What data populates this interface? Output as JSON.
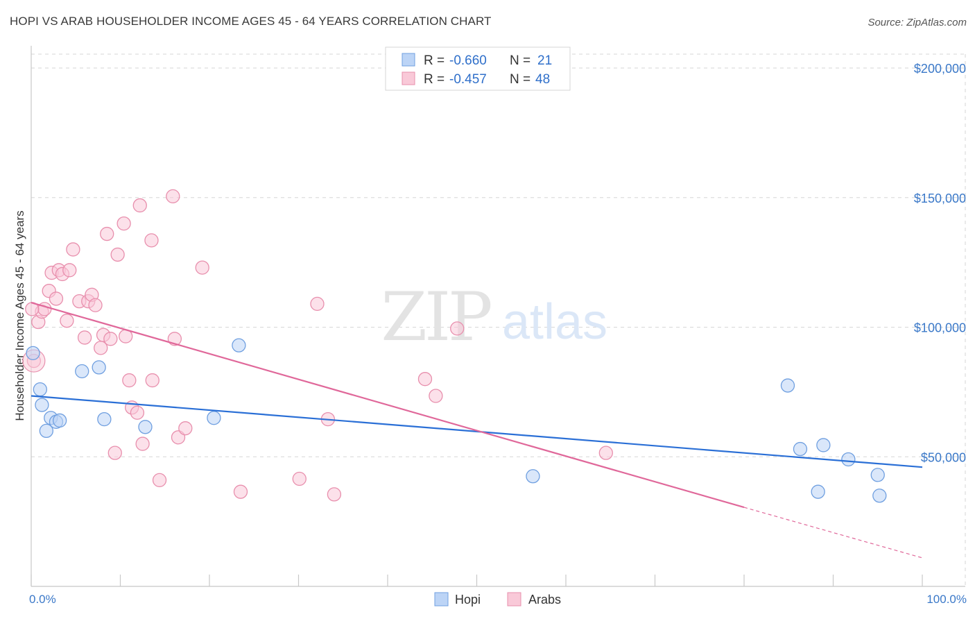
{
  "title": "HOPI VS ARAB HOUSEHOLDER INCOME AGES 45 - 64 YEARS CORRELATION CHART",
  "source": "Source: ZipAtlas.com",
  "watermark": {
    "zip": "ZIP",
    "atlas": "atlas"
  },
  "colors": {
    "hopi_fill": "#bcd4f6",
    "hopi_stroke": "#6f9fe0",
    "hopi_line": "#2a6fd6",
    "arab_fill": "#f9c9d8",
    "arab_stroke": "#e88fad",
    "arab_line": "#e0689a",
    "grid": "#d6d6d6",
    "axis_text": "#3a78c8"
  },
  "legend": {
    "rows": [
      {
        "r_label": "R =",
        "r_value": "-0.660",
        "n_label": "N =",
        "n_value": "21"
      },
      {
        "r_label": "R =",
        "r_value": "-0.457",
        "n_label": "N =",
        "n_value": "48"
      }
    ]
  },
  "bottom_legend": {
    "hopi": "Hopi",
    "arabs": "Arabs"
  },
  "chart_data": {
    "type": "scatter",
    "xlabel": "",
    "ylabel": "Householder Income Ages 45 - 64 years",
    "xlim": [
      0,
      100
    ],
    "ylim": [
      0,
      210000
    ],
    "x_tick_labels": {
      "left": "0.0%",
      "right": "100.0%"
    },
    "y_ticks": [
      {
        "value": 50000,
        "label": "$50,000"
      },
      {
        "value": 100000,
        "label": "$100,000"
      },
      {
        "value": 150000,
        "label": "$150,000"
      },
      {
        "value": 200000,
        "label": "$200,000"
      }
    ],
    "series": [
      {
        "name": "Hopi",
        "r": -0.66,
        "n": 21,
        "points": [
          [
            0.2,
            90000
          ],
          [
            1.0,
            76000
          ],
          [
            1.2,
            70000
          ],
          [
            1.7,
            60000
          ],
          [
            2.2,
            65000
          ],
          [
            2.8,
            63500
          ],
          [
            3.2,
            64000
          ],
          [
            5.7,
            83000
          ],
          [
            7.6,
            84500
          ],
          [
            8.2,
            64500
          ],
          [
            12.8,
            61500
          ],
          [
            20.5,
            65000
          ],
          [
            23.3,
            93000
          ],
          [
            56.3,
            42500
          ],
          [
            84.9,
            77500
          ],
          [
            86.3,
            53000
          ],
          [
            88.3,
            36500
          ],
          [
            88.9,
            54500
          ],
          [
            91.7,
            49000
          ],
          [
            95.0,
            43000
          ],
          [
            95.2,
            35000
          ]
        ],
        "trend": {
          "x0": 0,
          "y0": 73500,
          "x1": 100,
          "y1": 46000
        }
      },
      {
        "name": "Arabs",
        "r": -0.457,
        "n": 48,
        "points": [
          [
            0.3,
            87000
          ],
          [
            0.8,
            102000
          ],
          [
            1.2,
            106000
          ],
          [
            1.5,
            107000
          ],
          [
            2.0,
            114000
          ],
          [
            2.3,
            121000
          ],
          [
            2.8,
            111000
          ],
          [
            3.1,
            122000
          ],
          [
            3.5,
            120500
          ],
          [
            4.0,
            102500
          ],
          [
            4.3,
            122000
          ],
          [
            4.7,
            130000
          ],
          [
            5.4,
            110000
          ],
          [
            6.0,
            96000
          ],
          [
            6.4,
            110000
          ],
          [
            6.8,
            112500
          ],
          [
            7.2,
            108500
          ],
          [
            7.8,
            92000
          ],
          [
            8.1,
            97000
          ],
          [
            8.5,
            136000
          ],
          [
            8.9,
            95500
          ],
          [
            9.4,
            51500
          ],
          [
            9.7,
            128000
          ],
          [
            10.4,
            140000
          ],
          [
            10.6,
            96500
          ],
          [
            11.0,
            79500
          ],
          [
            11.3,
            69000
          ],
          [
            11.9,
            67000
          ],
          [
            12.2,
            147000
          ],
          [
            12.5,
            55000
          ],
          [
            13.5,
            133500
          ],
          [
            13.6,
            79500
          ],
          [
            14.4,
            41000
          ],
          [
            15.9,
            150500
          ],
          [
            16.1,
            95500
          ],
          [
            16.5,
            57500
          ],
          [
            17.3,
            61000
          ],
          [
            19.2,
            123000
          ],
          [
            23.5,
            36500
          ],
          [
            30.1,
            41500
          ],
          [
            32.1,
            109000
          ],
          [
            33.3,
            64500
          ],
          [
            34.0,
            35500
          ],
          [
            44.2,
            80000
          ],
          [
            45.4,
            73500
          ],
          [
            47.8,
            99500
          ],
          [
            64.5,
            51500
          ],
          [
            0.1,
            107000
          ]
        ],
        "trend": {
          "x0": 0,
          "y0": 109500,
          "x1": 80,
          "y1": 30500
        },
        "trend_dashed": {
          "x0": 80,
          "y0": 30500,
          "x1": 100,
          "y1": 11000
        }
      }
    ]
  }
}
